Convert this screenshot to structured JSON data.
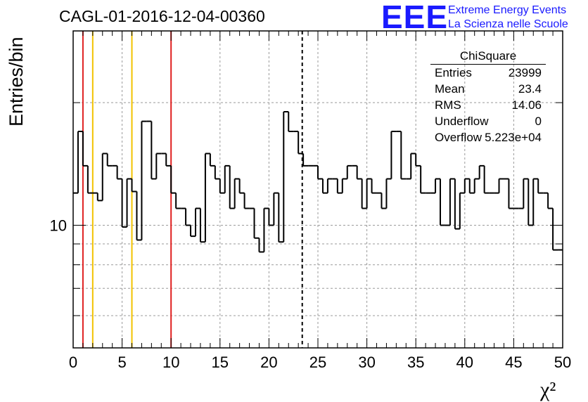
{
  "header": {
    "title": "CAGL-01-2016-12-04-00360",
    "logo_text": "EEE",
    "logo_line1": "Extreme Energy Events",
    "logo_line2": "La Scienza nelle Scuole"
  },
  "stats": {
    "name": "ChiSquare",
    "rows": [
      {
        "key": "Entries",
        "value": "23999"
      },
      {
        "key": "Mean",
        "value": "23.4"
      },
      {
        "key": "RMS",
        "value": "14.06"
      },
      {
        "key": "Underflow",
        "value": "0"
      },
      {
        "key": "Overflow",
        "value": "5.223e+04"
      }
    ]
  },
  "colors": {
    "red": "#e02020",
    "yellow": "#f2c200",
    "hist": "#000000",
    "grid": "#9a9a9a"
  },
  "chart_data": {
    "type": "histogram",
    "xlabel": "χ²",
    "ylabel": "Entries/bin",
    "xlim": [
      0,
      50
    ],
    "ylim": [
      5,
      30
    ],
    "y_scale": "log",
    "grid": true,
    "x_ticks": [
      "0",
      "5",
      "10",
      "15",
      "20",
      "25",
      "30",
      "35",
      "40",
      "45",
      "50"
    ],
    "y_ticks": [
      "10"
    ],
    "bin_width": 0.5,
    "values": [
      12,
      17,
      14,
      12,
      12,
      11.5,
      15,
      14,
      14,
      13,
      9.9,
      13,
      12.1,
      9.2,
      18,
      18,
      13,
      15,
      15,
      14,
      12,
      11,
      11,
      10,
      9.4,
      11,
      9.1,
      15,
      14,
      13,
      12,
      14,
      11,
      13,
      12,
      11,
      11,
      9.3,
      8.6,
      11,
      10,
      12,
      9.1,
      19,
      17,
      17,
      15,
      14,
      14,
      14,
      13,
      12,
      13,
      13,
      12,
      13,
      14,
      14,
      13,
      11,
      13,
      12,
      12,
      11,
      13,
      17,
      17,
      13,
      13,
      15,
      14,
      12,
      12,
      12,
      13,
      10,
      10,
      13,
      9.8,
      12,
      13,
      12,
      13,
      14,
      12,
      12,
      12,
      13,
      13,
      11,
      11,
      11,
      13,
      10,
      13,
      12,
      12,
      11,
      8.7,
      8.7
    ],
    "vertical_lines": [
      {
        "x": 1,
        "color": "red",
        "style": "solid"
      },
      {
        "x": 2,
        "color": "yellow",
        "style": "solid"
      },
      {
        "x": 6,
        "color": "yellow",
        "style": "solid"
      },
      {
        "x": 10,
        "color": "red",
        "style": "solid"
      },
      {
        "x": 23.4,
        "color": "black",
        "style": "dashed"
      }
    ]
  }
}
